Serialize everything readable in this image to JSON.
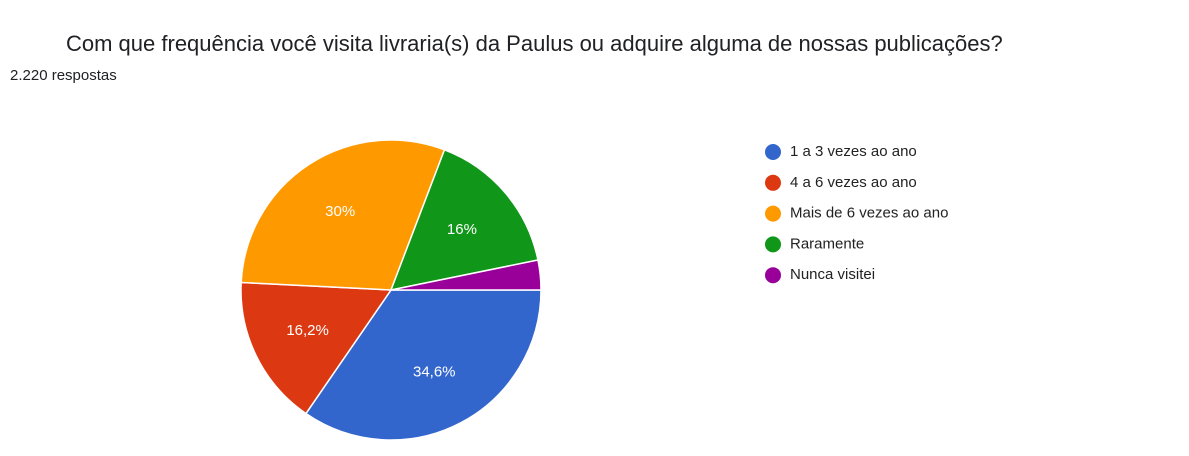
{
  "chart_data": {
    "type": "pie",
    "title": "Com que frequência você visita livraria(s) da Paulus ou adquire alguma de nossas publicações?",
    "subtitle": "2.220 respostas",
    "categories": [
      "1 a 3 vezes ao ano",
      "4 a 6 vezes ao ano",
      "Mais de 6 vezes ao ano",
      "Raramente",
      "Nunca visitei"
    ],
    "values": [
      34.6,
      16.2,
      30,
      16,
      3.2
    ],
    "value_labels": [
      "34,6%",
      "16,2%",
      "30%",
      "16%",
      null
    ],
    "colors": [
      "#3366cc",
      "#dc3912",
      "#ff9900",
      "#109618",
      "#990099"
    ],
    "legend": "right"
  }
}
